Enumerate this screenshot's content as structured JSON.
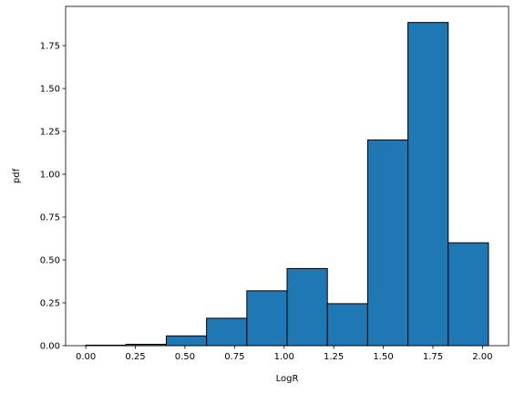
{
  "chart_data": {
    "type": "bar",
    "title": "",
    "xlabel": "LogR",
    "ylabel": "pdf",
    "bin_edges": [
      0.0,
      0.203,
      0.406,
      0.609,
      0.812,
      1.015,
      1.218,
      1.421,
      1.624,
      1.827,
      2.03
    ],
    "values": [
      0.003,
      0.008,
      0.057,
      0.16,
      0.32,
      0.45,
      0.245,
      1.2,
      1.885,
      0.6
    ],
    "xlim": [
      -0.1015,
      2.1315
    ],
    "ylim": [
      0,
      1.979
    ],
    "xticks": [
      0.0,
      0.25,
      0.5,
      0.75,
      1.0,
      1.25,
      1.5,
      1.75,
      2.0
    ],
    "xtick_labels": [
      "0.00",
      "0.25",
      "0.50",
      "0.75",
      "1.00",
      "1.25",
      "1.50",
      "1.75",
      "2.00"
    ],
    "yticks": [
      0.0,
      0.25,
      0.5,
      0.75,
      1.0,
      1.25,
      1.5,
      1.75
    ],
    "ytick_labels": [
      "0.00",
      "0.25",
      "0.50",
      "0.75",
      "1.00",
      "1.25",
      "1.50",
      "1.75"
    ],
    "grid": false,
    "bar_color": "#1f77b4",
    "edge_color": "#000000"
  }
}
